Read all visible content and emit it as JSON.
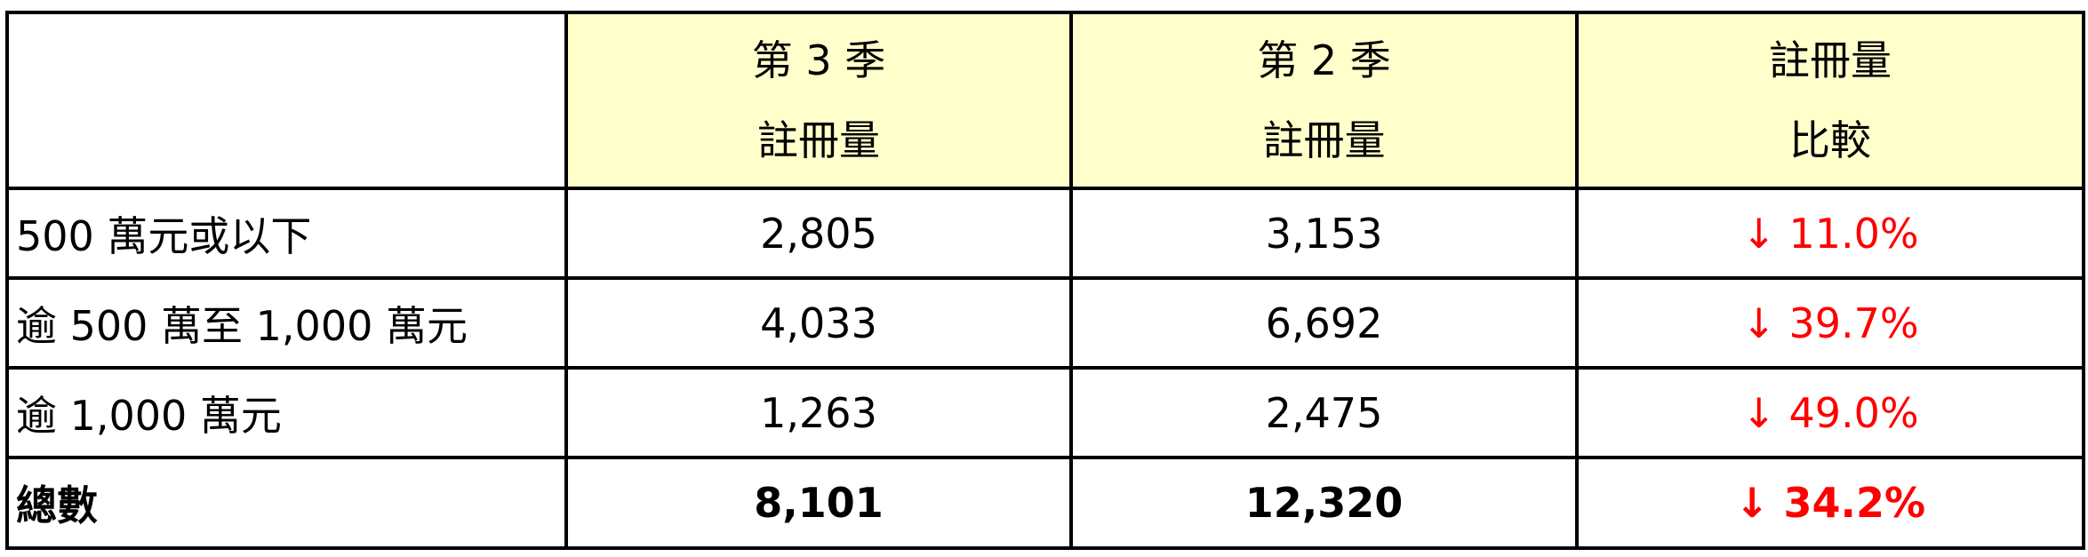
{
  "header": {
    "col1": {
      "line1": "第 3 季",
      "line2": "註冊量"
    },
    "col2": {
      "line1": "第 2 季",
      "line2": "註冊量"
    },
    "col3": {
      "line1": "註冊量",
      "line2": "比較"
    }
  },
  "rows": [
    {
      "label": "500 萬元或以下",
      "q3": "2,805",
      "q2": "3,153",
      "change": "↓ 11.0%"
    },
    {
      "label": "逾 500 萬至 1,000 萬元",
      "q3": "4,033",
      "q2": "6,692",
      "change": "↓ 39.7%"
    },
    {
      "label": "逾 1,000 萬元",
      "q3": "1,263",
      "q2": "2,475",
      "change": "↓ 49.0%"
    }
  ],
  "total": {
    "label": "總數",
    "q3": "8,101",
    "q2": "12,320",
    "change": "↓ 34.2%"
  },
  "colors": {
    "header_bg": "#ffffcc",
    "decrease": "#ff0000"
  }
}
